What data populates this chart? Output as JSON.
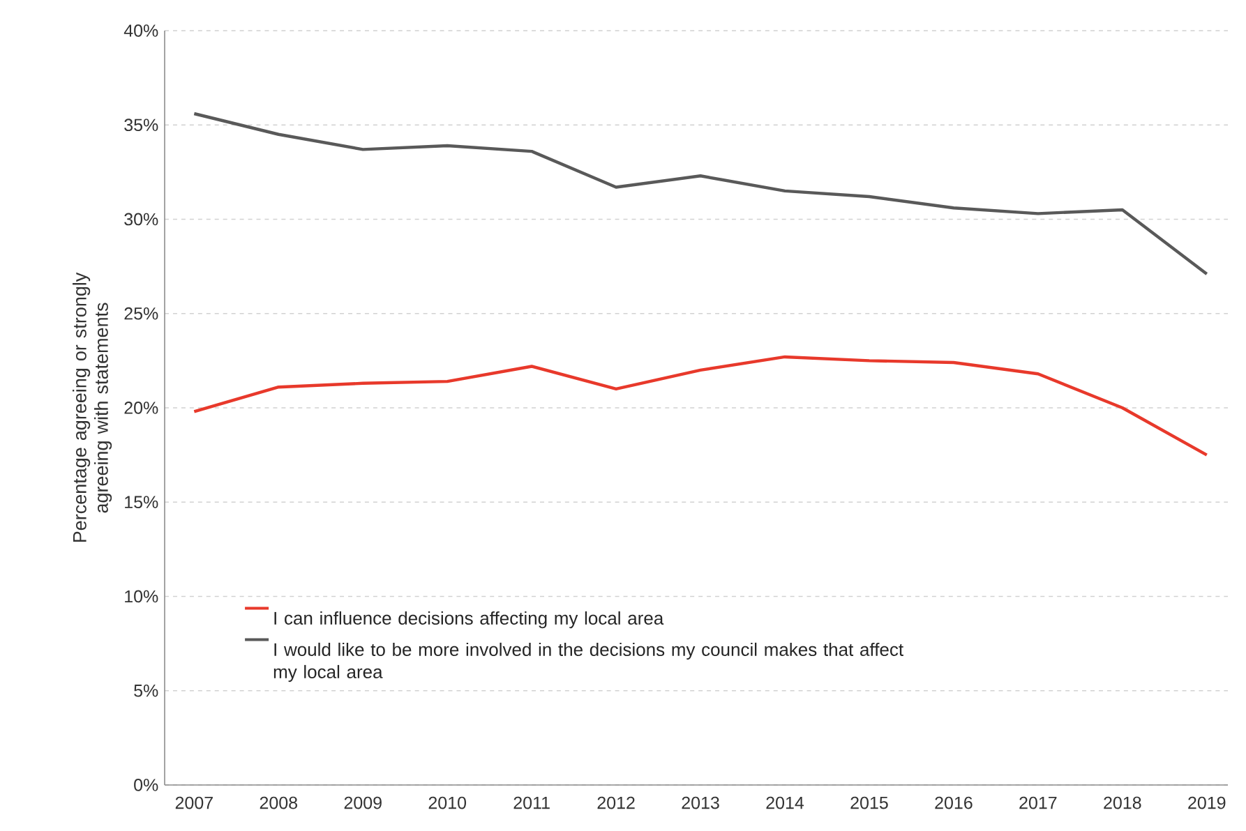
{
  "chart_data": {
    "type": "line",
    "ylabel": "Percentage agreeing or strongly agreeing with statements",
    "categories": [
      "2007",
      "2008",
      "2009",
      "2010",
      "2011",
      "2012",
      "2013",
      "2014",
      "2015",
      "2016",
      "2017",
      "2018",
      "2019"
    ],
    "series": [
      {
        "name": "I can influence decisions affecting my local area",
        "color": "#e8392b",
        "values": [
          19.8,
          21.1,
          21.3,
          21.4,
          22.2,
          21.0,
          22.0,
          22.7,
          22.5,
          22.4,
          21.8,
          20.0,
          17.5
        ]
      },
      {
        "name": "I would like to be more involved in the decisions my council makes that affect my local area",
        "color": "#595959",
        "values": [
          35.6,
          34.5,
          33.7,
          33.9,
          33.6,
          31.7,
          32.3,
          31.5,
          31.2,
          30.6,
          30.3,
          30.5,
          27.1
        ]
      }
    ],
    "ylim": [
      0,
      40
    ],
    "yticks": [
      {
        "value": 0,
        "label": "0%"
      },
      {
        "value": 5,
        "label": "5%"
      },
      {
        "value": 10,
        "label": "10%"
      },
      {
        "value": 15,
        "label": "15%"
      },
      {
        "value": 20,
        "label": "20%"
      },
      {
        "value": 25,
        "label": "25%"
      },
      {
        "value": 30,
        "label": "30%"
      },
      {
        "value": 35,
        "label": "35%"
      },
      {
        "value": 40,
        "label": "40%"
      }
    ],
    "grid": "y",
    "legend": "bottom left",
    "marker": "none",
    "line_style": "solid"
  }
}
